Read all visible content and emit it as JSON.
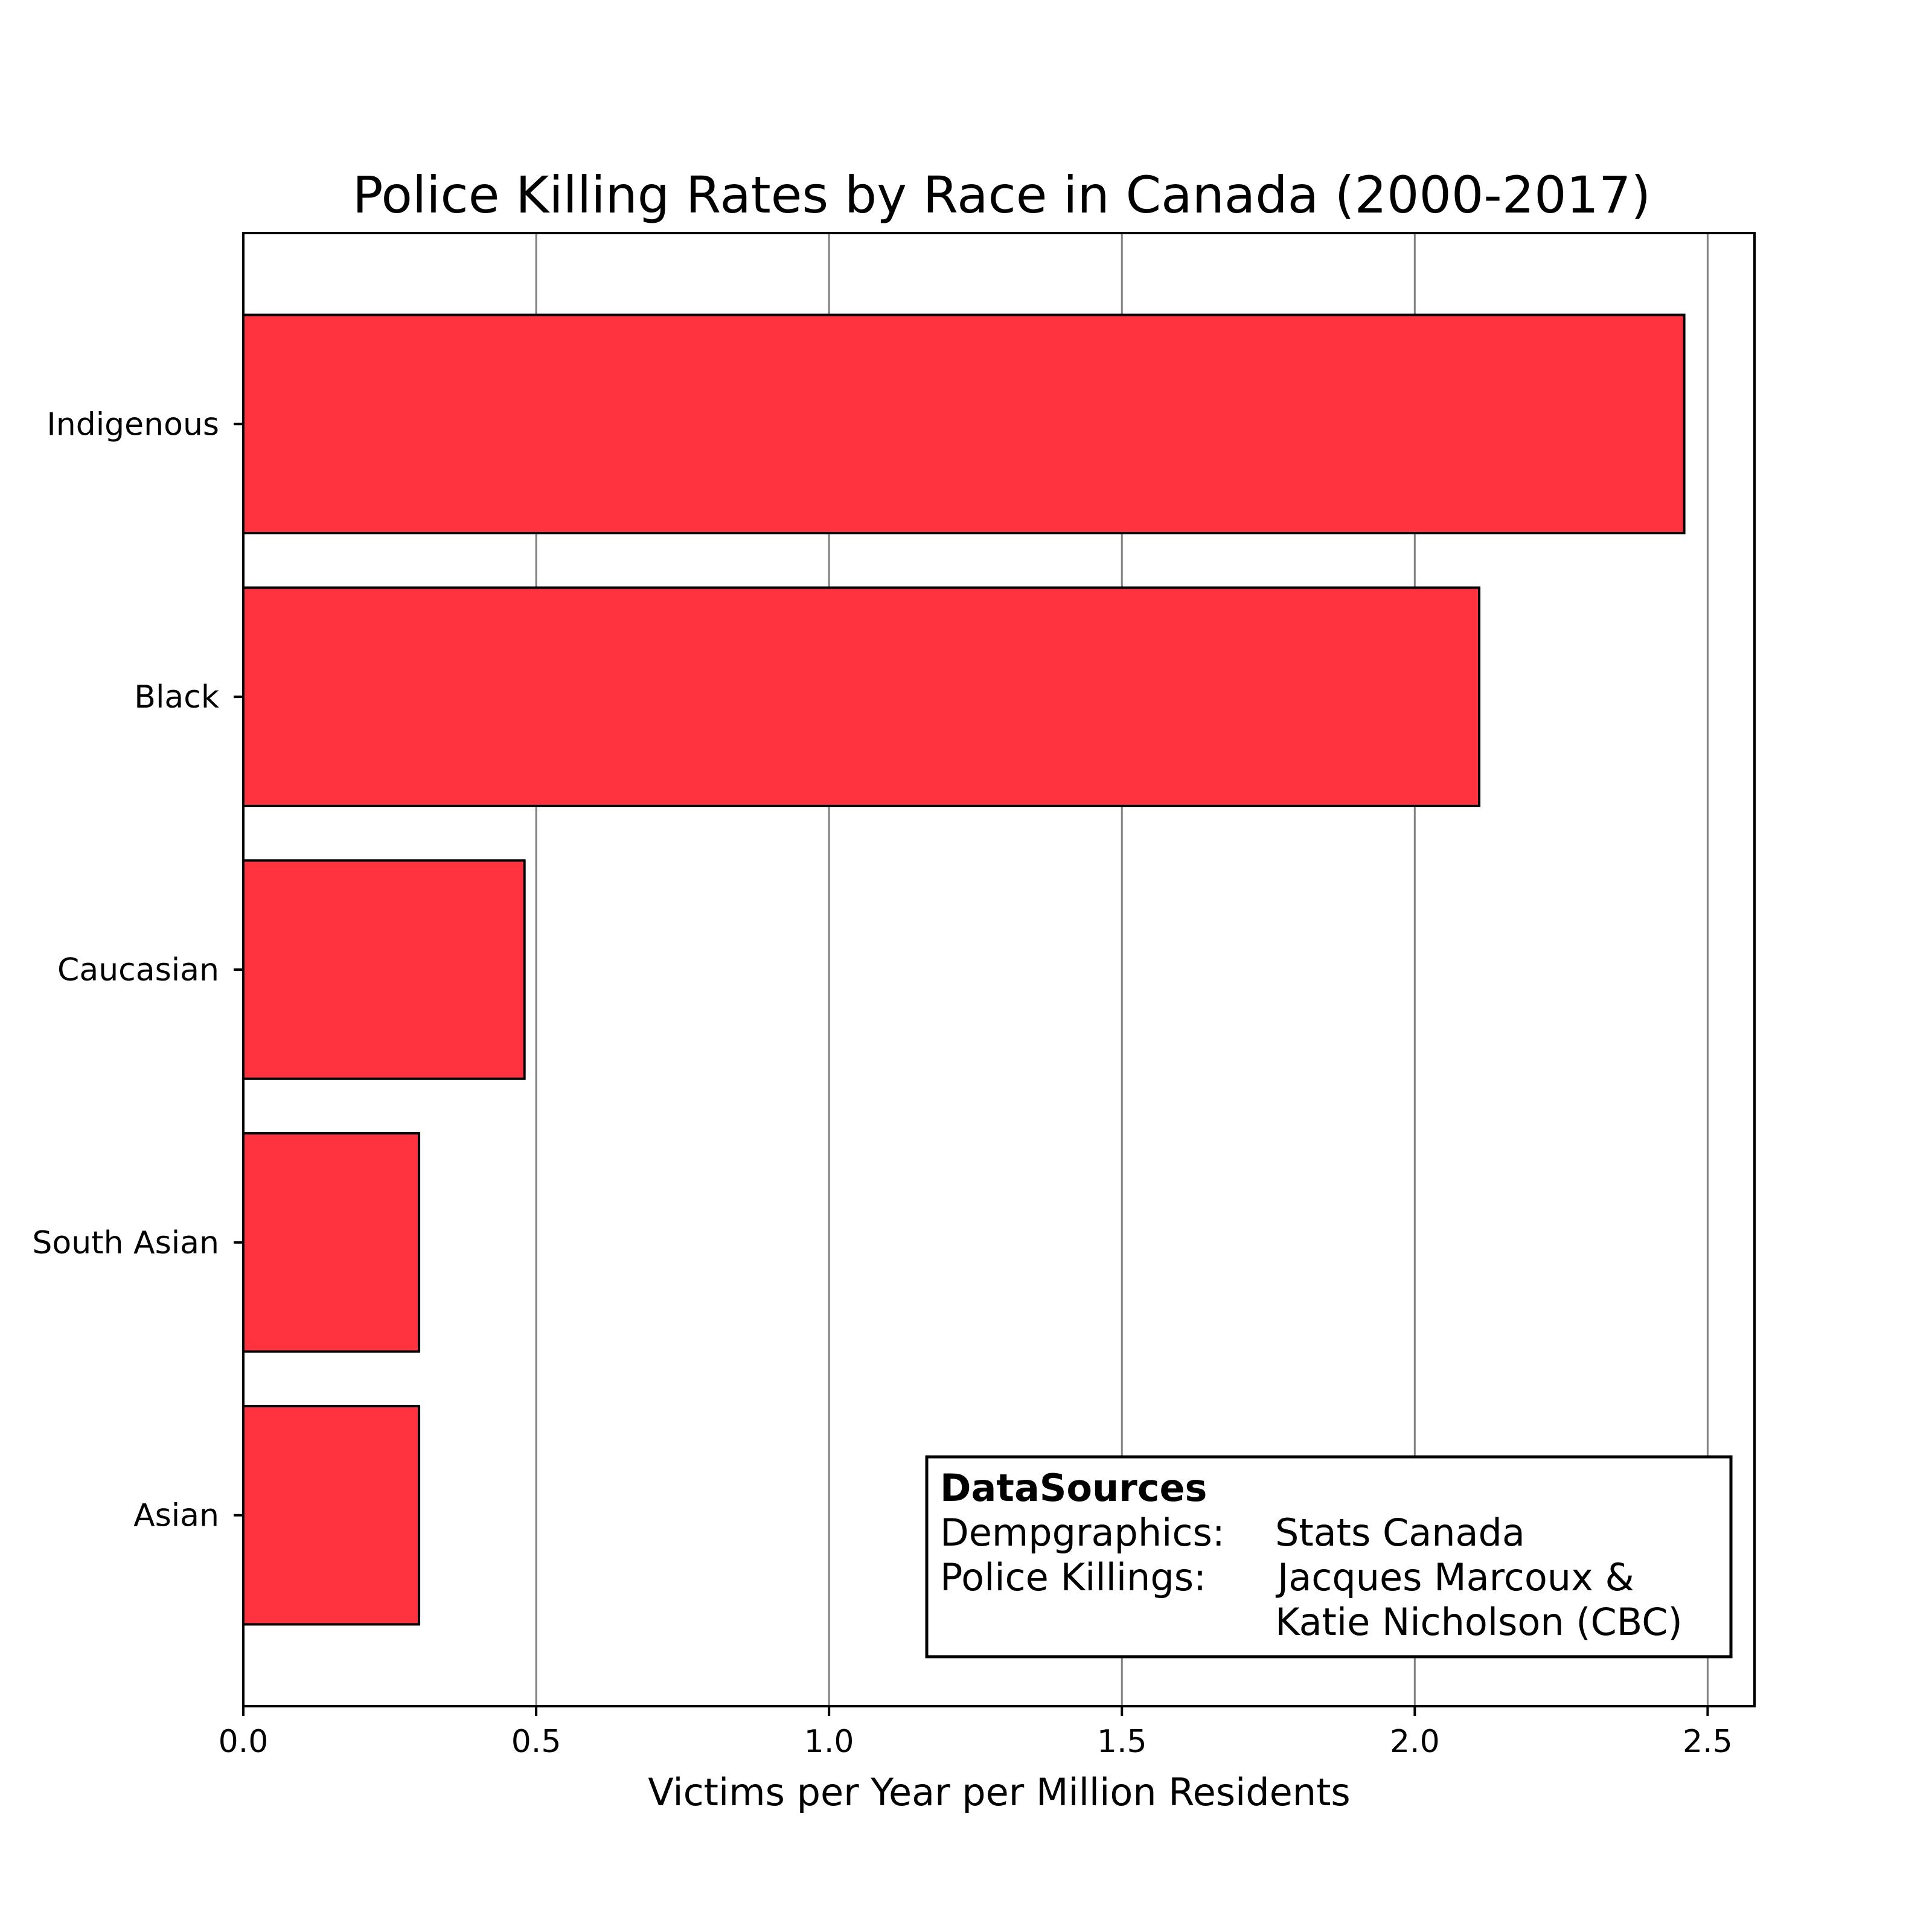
{
  "chart_data": {
    "type": "bar",
    "orientation": "horizontal",
    "title": "Police Killing Rates by Race in Canada (2000-2017)",
    "xlabel": "Victims per Year per Million Residents",
    "ylabel": "",
    "categories": [
      "Indigenous",
      "Black",
      "Caucasian",
      "South Asian",
      "Asian"
    ],
    "values": [
      2.46,
      2.11,
      0.48,
      0.3,
      0.3
    ],
    "xlim": [
      0,
      2.58
    ],
    "x_ticks": [
      "0.0",
      "0.5",
      "1.0",
      "1.5",
      "2.0",
      "2.5"
    ],
    "x_tick_values": [
      0,
      0.5,
      1.0,
      1.5,
      2.0,
      2.5
    ],
    "grid": "vertical",
    "bar_color": "#ff3340",
    "bar_edge_color": "#000000",
    "grid_color": "#808080",
    "annotation": {
      "heading": "DataSources",
      "lines": [
        [
          "Dempgraphics:",
          "Stats Canada"
        ],
        [
          "Police Killings:",
          "Jacques Marcoux &"
        ],
        [
          "",
          "Katie Nicholson (CBC)"
        ]
      ],
      "placement": "bottom-right"
    }
  }
}
